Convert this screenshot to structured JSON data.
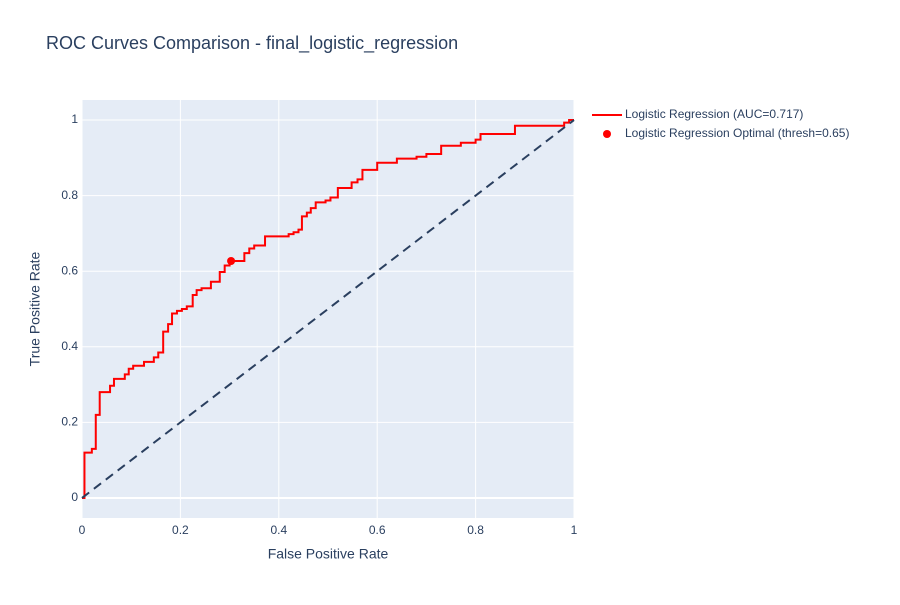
{
  "chart_data": {
    "type": "line",
    "title": "ROC Curves Comparison - final_logistic_regression",
    "x_label": "False Positive Rate",
    "y_label": "True Positive Rate",
    "xlim": [
      0,
      1
    ],
    "ylim": [
      -0.053,
      1.053
    ],
    "xticks": [
      0,
      0.2,
      0.4,
      0.6,
      0.8,
      1
    ],
    "yticks": [
      0,
      0.2,
      0.4,
      0.6,
      0.8,
      1
    ],
    "grid": true,
    "legend": "outside-right",
    "series": [
      {
        "name": "Logistic Regression (AUC=0.717)",
        "color": "#ff0000",
        "mode": "lines",
        "x": [
          0,
          0.005,
          0.005,
          0.02,
          0.02,
          0.028,
          0.028,
          0.036,
          0.036,
          0.057,
          0.057,
          0.065,
          0.065,
          0.087,
          0.087,
          0.095,
          0.095,
          0.104,
          0.104,
          0.126,
          0.126,
          0.146,
          0.146,
          0.155,
          0.155,
          0.165,
          0.165,
          0.175,
          0.175,
          0.183,
          0.183,
          0.193,
          0.193,
          0.203,
          0.203,
          0.213,
          0.213,
          0.225,
          0.225,
          0.233,
          0.233,
          0.243,
          0.243,
          0.262,
          0.262,
          0.28,
          0.28,
          0.29,
          0.29,
          0.3,
          0.3,
          0.33,
          0.33,
          0.34,
          0.34,
          0.35,
          0.35,
          0.372,
          0.372,
          0.42,
          0.42,
          0.43,
          0.43,
          0.44,
          0.44,
          0.447,
          0.447,
          0.457,
          0.457,
          0.465,
          0.465,
          0.475,
          0.475,
          0.495,
          0.495,
          0.505,
          0.505,
          0.52,
          0.52,
          0.548,
          0.548,
          0.56,
          0.56,
          0.57,
          0.57,
          0.6,
          0.6,
          0.64,
          0.64,
          0.68,
          0.68,
          0.7,
          0.7,
          0.73,
          0.73,
          0.77,
          0.77,
          0.8,
          0.8,
          0.81,
          0.81,
          0.88,
          0.88,
          0.98,
          0.98,
          0.99,
          0.99,
          1
        ],
        "y": [
          0,
          0,
          0.12,
          0.12,
          0.13,
          0.13,
          0.22,
          0.22,
          0.28,
          0.28,
          0.297,
          0.297,
          0.315,
          0.315,
          0.327,
          0.327,
          0.342,
          0.342,
          0.35,
          0.35,
          0.36,
          0.36,
          0.372,
          0.372,
          0.385,
          0.385,
          0.44,
          0.44,
          0.46,
          0.46,
          0.488,
          0.488,
          0.495,
          0.495,
          0.5,
          0.5,
          0.507,
          0.507,
          0.537,
          0.537,
          0.55,
          0.55,
          0.555,
          0.555,
          0.572,
          0.572,
          0.598,
          0.598,
          0.615,
          0.615,
          0.627,
          0.627,
          0.648,
          0.648,
          0.66,
          0.66,
          0.668,
          0.668,
          0.692,
          0.692,
          0.698,
          0.698,
          0.703,
          0.703,
          0.71,
          0.71,
          0.745,
          0.745,
          0.755,
          0.755,
          0.767,
          0.767,
          0.782,
          0.782,
          0.787,
          0.787,
          0.795,
          0.795,
          0.82,
          0.82,
          0.835,
          0.835,
          0.843,
          0.843,
          0.868,
          0.868,
          0.887,
          0.887,
          0.898,
          0.898,
          0.903,
          0.903,
          0.91,
          0.91,
          0.932,
          0.932,
          0.94,
          0.94,
          0.948,
          0.948,
          0.963,
          0.963,
          0.985,
          0.985,
          0.993,
          0.993,
          1,
          1
        ]
      },
      {
        "name": "Logistic Regression Optimal (thresh=0.65)",
        "color": "#ff0000",
        "mode": "markers",
        "x": [
          0.303
        ],
        "y": [
          0.627
        ]
      },
      {
        "color": "#2a3f5f",
        "mode": "dash",
        "x": [
          0,
          1
        ],
        "y": [
          0,
          1
        ]
      }
    ]
  }
}
